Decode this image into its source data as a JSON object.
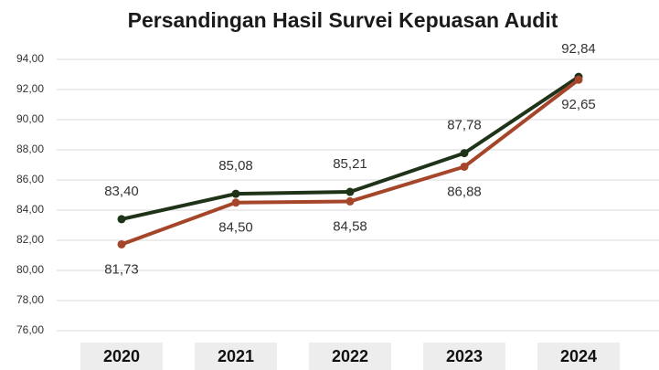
{
  "chart_data": {
    "type": "line",
    "title": "Persandingan Hasil Survei Kepuasan Audit",
    "categories": [
      "2020",
      "2021",
      "2022",
      "2023",
      "2024"
    ],
    "series": [
      {
        "color": "#1f3318",
        "values": [
          83.4,
          85.08,
          85.21,
          87.78,
          92.84
        ],
        "value_labels": [
          "83,40",
          "85,08",
          "85,21",
          "87,78",
          "92,84"
        ]
      },
      {
        "color": "#a5462b",
        "values": [
          81.73,
          84.5,
          84.58,
          86.88,
          92.65
        ],
        "value_labels": [
          "81,73",
          "84,50",
          "84,58",
          "86,88",
          "92,65"
        ]
      }
    ],
    "ylim": [
      76,
      94
    ],
    "yticks": [
      {
        "value": 76,
        "label": "76,00"
      },
      {
        "value": 78,
        "label": "78,00"
      },
      {
        "value": 80,
        "label": "80,00"
      },
      {
        "value": 82,
        "label": "82,00"
      },
      {
        "value": 84,
        "label": "84,00"
      },
      {
        "value": 86,
        "label": "86,00"
      },
      {
        "value": 88,
        "label": "88,00"
      },
      {
        "value": 90,
        "label": "90,00"
      },
      {
        "value": 92,
        "label": "92,00"
      },
      {
        "value": 94,
        "label": "94,00"
      }
    ],
    "grid": true
  }
}
